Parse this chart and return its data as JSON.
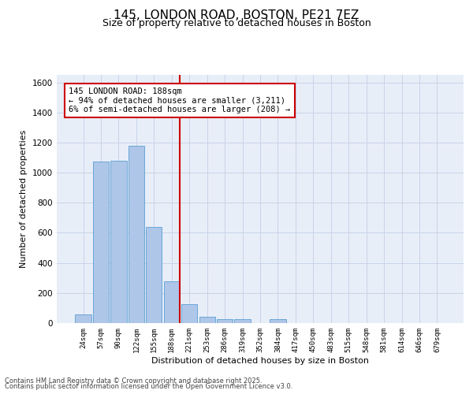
{
  "title": "145, LONDON ROAD, BOSTON, PE21 7EZ",
  "subtitle": "Size of property relative to detached houses in Boston",
  "xlabel": "Distribution of detached houses by size in Boston",
  "ylabel": "Number of detached properties",
  "footer_line1": "Contains HM Land Registry data © Crown copyright and database right 2025.",
  "footer_line2": "Contains public sector information licensed under the Open Government Licence v3.0.",
  "annotation_title": "145 LONDON ROAD: 188sqm",
  "annotation_line1": "← 94% of detached houses are smaller (3,211)",
  "annotation_line2": "6% of semi-detached houses are larger (208) →",
  "categories": [
    "24sqm",
    "57sqm",
    "90sqm",
    "122sqm",
    "155sqm",
    "188sqm",
    "221sqm",
    "253sqm",
    "286sqm",
    "319sqm",
    "352sqm",
    "384sqm",
    "417sqm",
    "450sqm",
    "483sqm",
    "515sqm",
    "548sqm",
    "581sqm",
    "614sqm",
    "646sqm",
    "679sqm"
  ],
  "values": [
    60,
    1075,
    1080,
    1180,
    640,
    280,
    125,
    40,
    25,
    25,
    0,
    25,
    0,
    0,
    0,
    0,
    0,
    0,
    0,
    0,
    0
  ],
  "bar_color": "#aec6e8",
  "bar_edge_color": "#5a9fd4",
  "vline_index": 5,
  "vline_color": "#cc0000",
  "ylim": [
    0,
    1650
  ],
  "yticks": [
    0,
    200,
    400,
    600,
    800,
    1000,
    1200,
    1400,
    1600
  ],
  "grid_color": "#c8d4e8",
  "bg_color": "#e8eef8",
  "title_fontsize": 11,
  "subtitle_fontsize": 9,
  "annotation_box_edge_color": "#cc0000",
  "annotation_fontsize": 7.5,
  "ylabel_fontsize": 8,
  "xlabel_fontsize": 8,
  "tick_fontsize": 6.5,
  "ytick_fontsize": 7.5,
  "footer_fontsize": 6
}
